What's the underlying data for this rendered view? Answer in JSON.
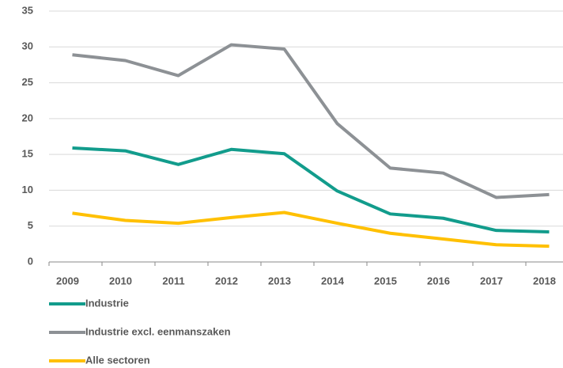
{
  "chart_data": {
    "type": "line",
    "categories": [
      "2009",
      "2010",
      "2011",
      "2012",
      "2013",
      "2014",
      "2015",
      "2016",
      "2017",
      "2018"
    ],
    "series": [
      {
        "name": "Industrie",
        "color": "#129c8c",
        "values": [
          15.9,
          15.5,
          13.6,
          15.7,
          15.1,
          9.9,
          6.7,
          6.1,
          4.4,
          4.2
        ]
      },
      {
        "name": "Industrie excl. eenmanszaken",
        "color": "#8d9195",
        "values": [
          28.9,
          28.1,
          26.0,
          30.3,
          29.7,
          19.3,
          13.1,
          12.4,
          9.0,
          9.4
        ]
      },
      {
        "name": "Alle sectoren",
        "color": "#ffc000",
        "values": [
          6.8,
          5.8,
          5.4,
          6.2,
          6.9,
          5.4,
          4.0,
          3.2,
          2.4,
          2.2
        ]
      }
    ],
    "ylim": [
      0,
      35
    ],
    "yticks": [
      0,
      5,
      10,
      15,
      20,
      25,
      30,
      35
    ],
    "grid": true
  }
}
